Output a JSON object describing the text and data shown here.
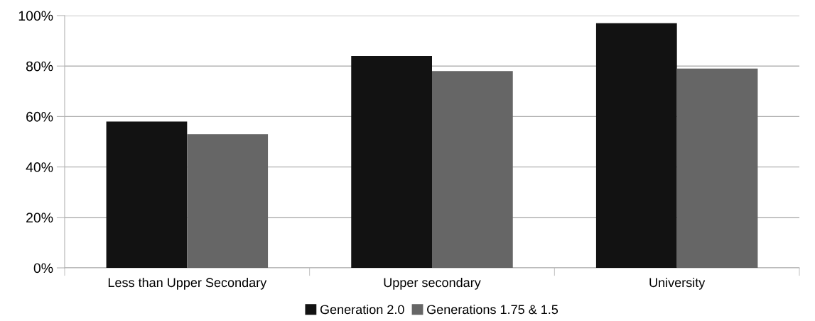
{
  "chart_data": {
    "type": "bar",
    "categories": [
      "Less than Upper Secondary",
      "Upper secondary",
      "University"
    ],
    "series": [
      {
        "name": "Generation 2.0",
        "color": "#121212",
        "values": [
          58,
          84,
          97
        ]
      },
      {
        "name": "Generations 1.75 & 1.5",
        "color": "#666666",
        "values": [
          53,
          78,
          79
        ]
      }
    ],
    "ylim": [
      0,
      100
    ],
    "yticks": [
      {
        "value": 0,
        "label": "0%"
      },
      {
        "value": 20,
        "label": "20%"
      },
      {
        "value": 40,
        "label": "40%"
      },
      {
        "value": 60,
        "label": "60%"
      },
      {
        "value": 80,
        "label": "80%"
      },
      {
        "value": 100,
        "label": "100%"
      }
    ],
    "grid": "y",
    "legend": "bottom"
  }
}
